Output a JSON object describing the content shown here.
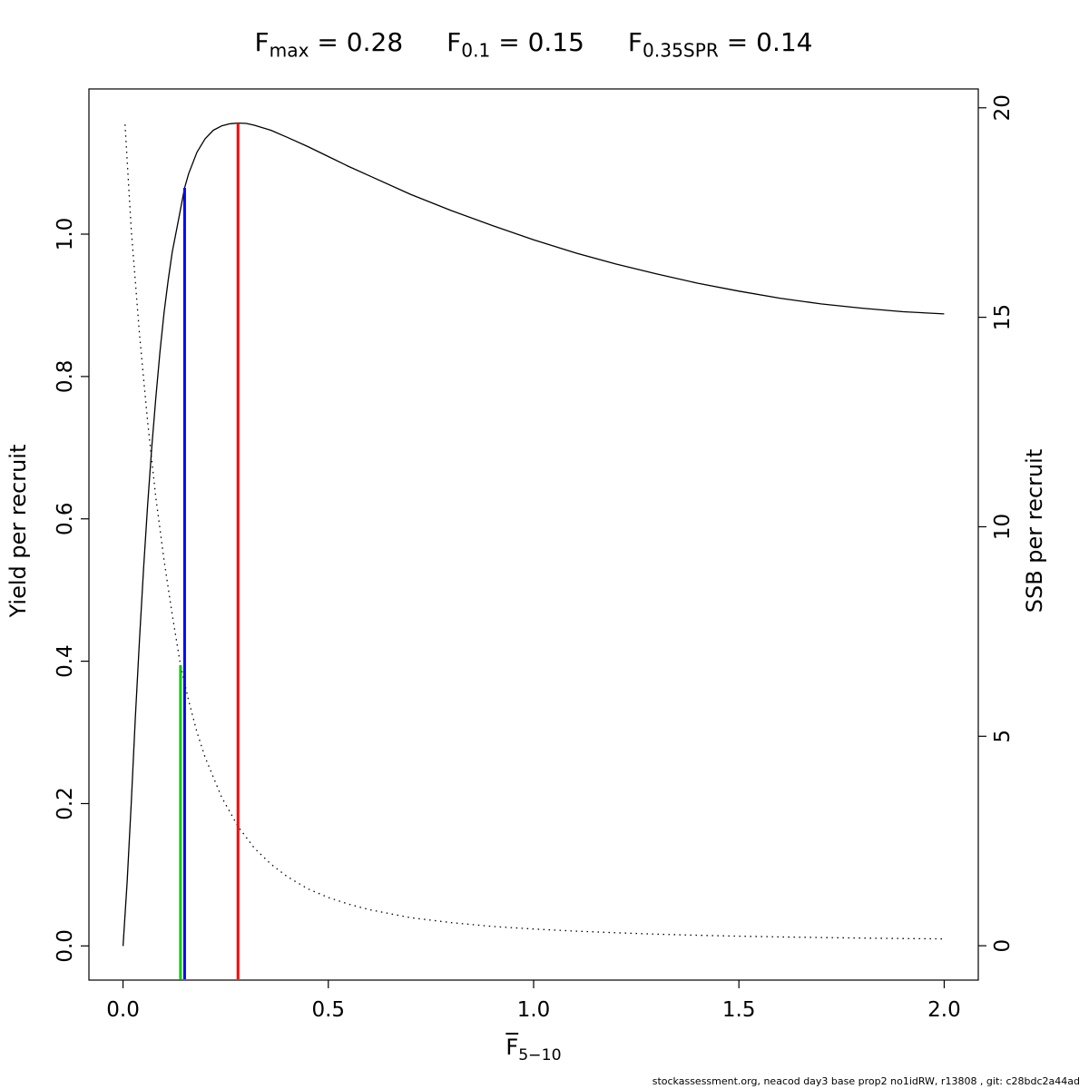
{
  "title": {
    "items": [
      {
        "symbol": "F",
        "subscript": "max",
        "value": "0.28"
      },
      {
        "symbol": "F",
        "subscript": "0.1",
        "value": "0.15"
      },
      {
        "symbol": "F",
        "subscript": "0.35SPR",
        "value": "0.14"
      }
    ]
  },
  "footer": "stockassessment.org, neacod day3 base prop2 no1idRW, r13808 , git: c28bdc2a44ad",
  "chart_data": {
    "type": "line",
    "xlabel": {
      "symbol": "F",
      "overbar": true,
      "subscript": "5−10"
    },
    "ylabel_left": "Yield per recruit",
    "ylabel_right": "SSB per recruit",
    "xlim": [
      -0.083,
      2.083
    ],
    "ylim_left": [
      -0.048,
      1.204
    ],
    "ylim_right": [
      -0.82,
      20.45
    ],
    "grid": false,
    "legend": "none",
    "x_ticks": [
      {
        "value": 0.0,
        "label": "0.0"
      },
      {
        "value": 0.5,
        "label": "0.5"
      },
      {
        "value": 1.0,
        "label": "1.0"
      },
      {
        "value": 1.5,
        "label": "1.5"
      },
      {
        "value": 2.0,
        "label": "2.0"
      }
    ],
    "y_ticks_left": [
      {
        "value": 0.0,
        "label": "0.0"
      },
      {
        "value": 0.2,
        "label": "0.2"
      },
      {
        "value": 0.4,
        "label": "0.4"
      },
      {
        "value": 0.6,
        "label": "0.6"
      },
      {
        "value": 0.8,
        "label": "0.8"
      },
      {
        "value": 1.0,
        "label": "1.0"
      }
    ],
    "y_ticks_right": [
      {
        "value": 0,
        "label": "0"
      },
      {
        "value": 5,
        "label": "5"
      },
      {
        "value": 10,
        "label": "10"
      },
      {
        "value": 15,
        "label": "15"
      },
      {
        "value": 20,
        "label": "20"
      }
    ],
    "series": [
      {
        "name": "Yield per recruit",
        "axis": "left",
        "style": "solid",
        "color": "#000000",
        "x": [
          0,
          0.01,
          0.02,
          0.03,
          0.04,
          0.05,
          0.06,
          0.07,
          0.08,
          0.09,
          0.1,
          0.11,
          0.12,
          0.13,
          0.14,
          0.15,
          0.16,
          0.18,
          0.2,
          0.22,
          0.24,
          0.26,
          0.28,
          0.3,
          0.32,
          0.36,
          0.4,
          0.45,
          0.5,
          0.55,
          0.6,
          0.7,
          0.8,
          0.9,
          1.0,
          1.1,
          1.2,
          1.3,
          1.4,
          1.5,
          1.6,
          1.7,
          1.8,
          1.9,
          2.0
        ],
        "y": [
          0.0,
          0.09,
          0.2,
          0.32,
          0.43,
          0.53,
          0.62,
          0.7,
          0.77,
          0.835,
          0.89,
          0.935,
          0.975,
          1.005,
          1.035,
          1.065,
          1.085,
          1.115,
          1.134,
          1.146,
          1.152,
          1.155,
          1.156,
          1.1555,
          1.153,
          1.146,
          1.136,
          1.123,
          1.109,
          1.095,
          1.082,
          1.056,
          1.033,
          1.012,
          0.992,
          0.974,
          0.958,
          0.944,
          0.931,
          0.92,
          0.91,
          0.902,
          0.896,
          0.891,
          0.888
        ]
      },
      {
        "name": "SSB per recruit",
        "axis": "right",
        "style": "dotted",
        "color": "#000000",
        "x": [
          0.005,
          0.02,
          0.04,
          0.06,
          0.08,
          0.1,
          0.12,
          0.14,
          0.16,
          0.18,
          0.2,
          0.24,
          0.28,
          0.32,
          0.36,
          0.4,
          0.45,
          0.5,
          0.55,
          0.6,
          0.7,
          0.8,
          0.9,
          1.0,
          1.1,
          1.2,
          1.3,
          1.4,
          1.5,
          1.6,
          1.7,
          1.8,
          1.9,
          2.0
        ],
        "y": [
          19.6,
          17.1,
          14.6,
          12.5,
          10.7,
          9.2,
          7.9,
          6.7,
          5.85,
          5.1,
          4.5,
          3.55,
          2.85,
          2.33,
          1.95,
          1.65,
          1.36,
          1.15,
          0.99,
          0.86,
          0.67,
          0.55,
          0.46,
          0.4,
          0.35,
          0.31,
          0.275,
          0.25,
          0.228,
          0.21,
          0.195,
          0.182,
          0.172,
          0.163
        ]
      }
    ],
    "reference_lines": [
      {
        "name": "Fmax",
        "x": 0.28,
        "top": 1.156,
        "axis": "left",
        "color": "#FF0000"
      },
      {
        "name": "F0.1",
        "x": 0.15,
        "top": 1.065,
        "axis": "left",
        "color": "#0000FF"
      },
      {
        "name": "F0.35SPR",
        "x": 0.14,
        "top": 6.7,
        "axis": "right",
        "color": "#00CD00"
      }
    ]
  }
}
